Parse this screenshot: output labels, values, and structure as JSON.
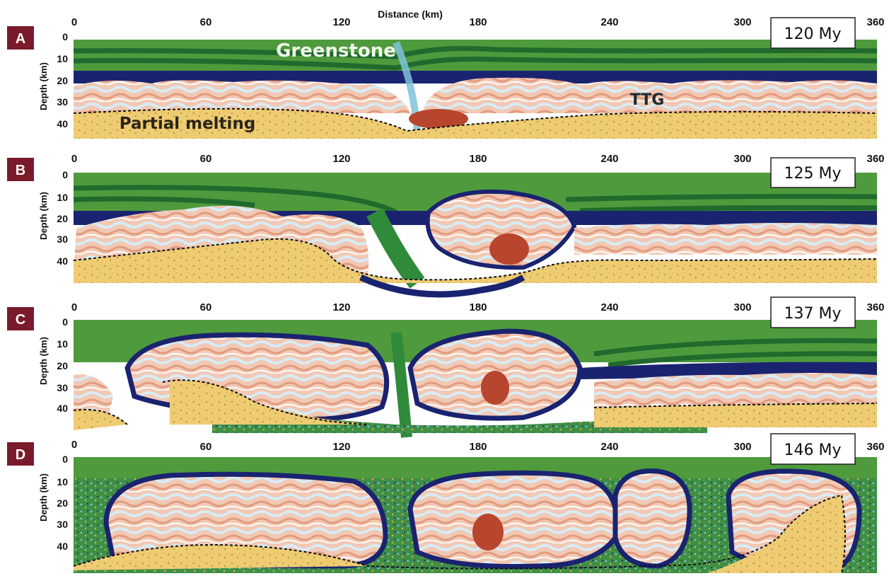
{
  "figure": {
    "x_axis_title": "Distance (km)",
    "y_axis_title": "Depth (km)",
    "x_ticks": [
      "0",
      "60",
      "120",
      "180",
      "240",
      "300",
      "360"
    ],
    "y_ticks": [
      "0",
      "10",
      "20",
      "30",
      "40"
    ],
    "panels": [
      {
        "label": "A",
        "time": "120 My"
      },
      {
        "label": "B",
        "time": "125 My"
      },
      {
        "label": "C",
        "time": "137 My"
      },
      {
        "label": "D",
        "time": "146 My"
      }
    ],
    "annotations": {
      "greenstone": "Greenstone",
      "ttg": "TTG",
      "partial_melting": "Partial melting"
    },
    "colors": {
      "greenstone": "#4e9a3c",
      "greenstone_band": "#1f6a2c",
      "mantle_layer": "#1a2370",
      "ttg_felsic": "#f1c9b4",
      "ttg_hot": "#b8452e",
      "ttg_cool": "#d6ecf6",
      "partial_melt": "#efcb72",
      "label_box": "#7a1a2a"
    }
  }
}
